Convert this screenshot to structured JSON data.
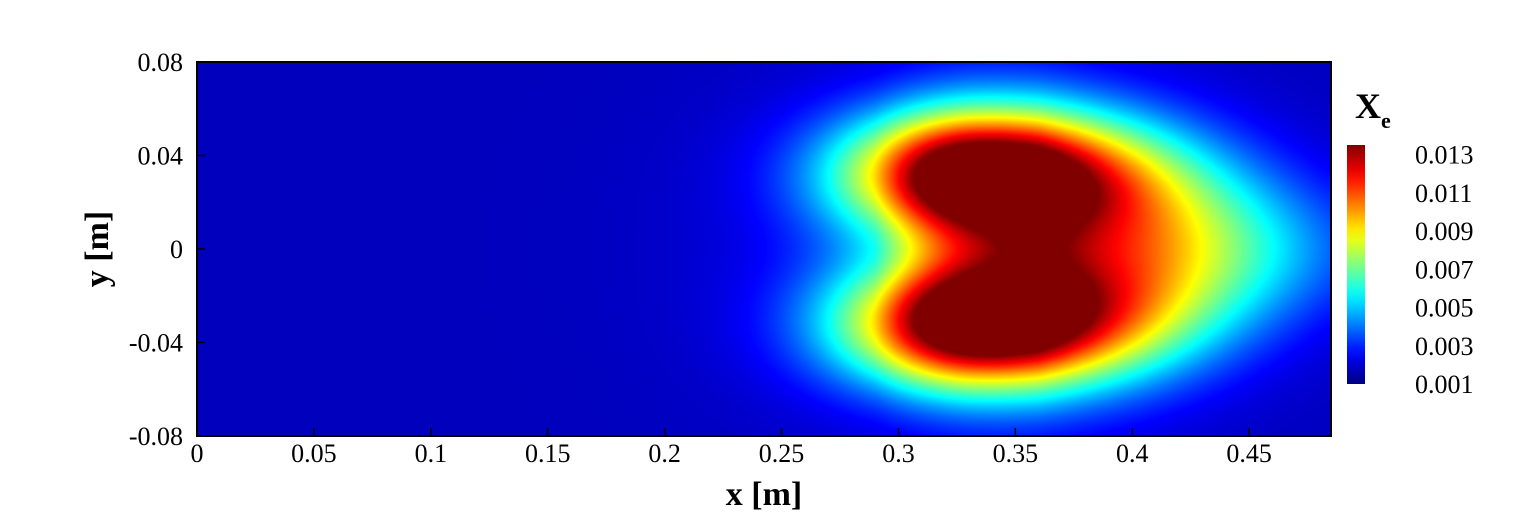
{
  "chart_data": {
    "type": "heatmap",
    "title": "",
    "xlabel": "x [m]",
    "ylabel": "y [m]",
    "xlim": [
      0,
      0.485
    ],
    "ylim": [
      -0.08,
      0.08
    ],
    "x_ticks": [
      0,
      0.05,
      0.1,
      0.15,
      0.2,
      0.25,
      0.3,
      0.35,
      0.4,
      0.45
    ],
    "x_tick_labels": [
      "0",
      "0.05",
      "0.1",
      "0.15",
      "0.2",
      "0.25",
      "0.3",
      "0.35",
      "0.4",
      "0.45"
    ],
    "y_ticks": [
      0.08,
      0.04,
      0,
      -0.04,
      -0.08
    ],
    "y_tick_labels": [
      "0.08",
      "0.04",
      "0",
      "-0.04",
      "-0.08"
    ],
    "colorbar": {
      "title_main": "X",
      "title_sub": "e",
      "range": [
        0.001,
        0.0135
      ],
      "ticks": [
        0.013,
        0.011,
        0.009,
        0.007,
        0.005,
        0.003,
        0.001
      ],
      "tick_labels": [
        "0.013",
        "0.011",
        "0.009",
        "0.007",
        "0.005",
        "0.003",
        "0.001"
      ],
      "colormap": "jet",
      "colors": [
        "#00007f",
        "#0000ff",
        "#00bfff",
        "#00ffff",
        "#7fff7f",
        "#ffff00",
        "#ff7f00",
        "#ff0000",
        "#7f0000"
      ]
    },
    "field": {
      "background": 0.001,
      "lobes": [
        {
          "x": 0.33,
          "y": 0.032,
          "peak": 0.0135
        },
        {
          "x": 0.33,
          "y": -0.032,
          "peak": 0.0135
        }
      ],
      "plume_extent_x": [
        0.28,
        0.485
      ],
      "grid": false
    }
  }
}
